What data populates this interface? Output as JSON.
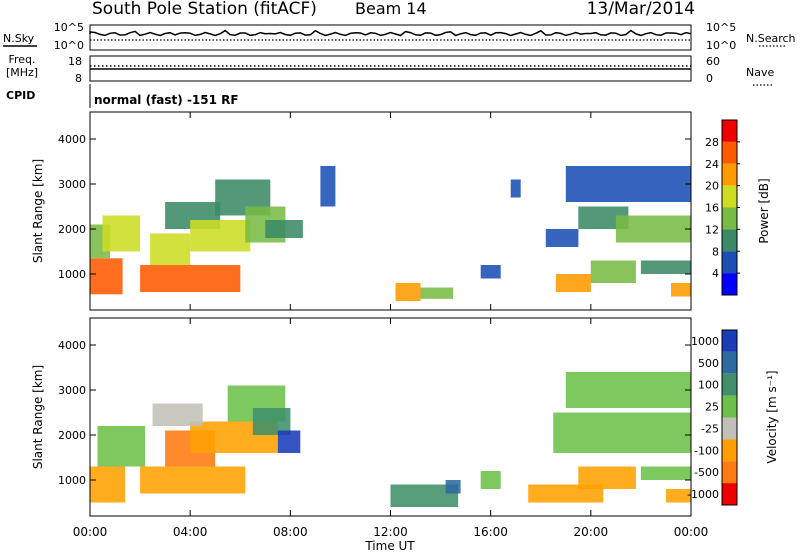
{
  "header": {
    "title": "South Pole Station (fitACF)",
    "beam": "Beam 14",
    "date": "13/Mar/2014"
  },
  "top_panels": {
    "nsky_label": "N.Sky",
    "nsearch_label": "N.Search",
    "noise_ticks": [
      "10^5",
      "10^0"
    ],
    "freq_label_1": "Freq.",
    "freq_label_2": "[MHz]",
    "freq_ticks": [
      "18",
      "8"
    ],
    "nave_label": "Nave",
    "nave_ticks": [
      "60",
      "0"
    ],
    "cpid_label": "CPID",
    "cpid_text": "normal (fast) -151 RF"
  },
  "x_axis": {
    "label": "Time UT",
    "ticks": [
      "00:00",
      "04:00",
      "08:00",
      "12:00",
      "16:00",
      "20:00",
      "00:00"
    ]
  },
  "colors": {
    "power": [
      "#0000ff",
      "#1b4fb4",
      "#3a8a66",
      "#77bb44",
      "#ccdd22",
      "#ff9a00",
      "#ff5a00",
      "#ee0000"
    ],
    "velocity": [
      "#1a3cb8",
      "#2c6aa0",
      "#3f8f6a",
      "#6cc04a",
      "#c0c0b8",
      "#ffa000",
      "#ff7a10",
      "#ee0000"
    ]
  },
  "chart_data": [
    {
      "type": "heatmap",
      "name": "power",
      "ylabel": "Slant Range [km]",
      "yticks": [
        "1000",
        "2000",
        "3000",
        "4000"
      ],
      "ylim": [
        200,
        4600
      ],
      "xlim_hours": [
        0,
        24
      ],
      "colorbar": {
        "label": "Power [dB]",
        "ticks": [
          "4",
          "8",
          "12",
          "16",
          "20",
          "24",
          "28"
        ],
        "range": [
          0,
          32
        ]
      },
      "regions": [
        {
          "t": [
            0.0,
            1.3
          ],
          "r": [
            550,
            1350
          ],
          "value": 24
        },
        {
          "t": [
            0.0,
            0.8
          ],
          "r": [
            1350,
            2100
          ],
          "value": 12
        },
        {
          "t": [
            0.5,
            2.0
          ],
          "r": [
            1500,
            2300
          ],
          "value": 16
        },
        {
          "t": [
            2.0,
            6.0
          ],
          "r": [
            600,
            1200
          ],
          "value": 24
        },
        {
          "t": [
            2.4,
            4.0
          ],
          "r": [
            1200,
            1900
          ],
          "value": 18
        },
        {
          "t": [
            3.0,
            5.2
          ],
          "r": [
            2000,
            2600
          ],
          "value": 8
        },
        {
          "t": [
            4.0,
            6.4
          ],
          "r": [
            1500,
            2200
          ],
          "value": 16
        },
        {
          "t": [
            5.0,
            7.2
          ],
          "r": [
            2300,
            3100
          ],
          "value": 8
        },
        {
          "t": [
            6.2,
            7.8
          ],
          "r": [
            1700,
            2500
          ],
          "value": 12
        },
        {
          "t": [
            7.0,
            8.5
          ],
          "r": [
            1800,
            2200
          ],
          "value": 8
        },
        {
          "t": [
            9.2,
            9.8
          ],
          "r": [
            2500,
            3400
          ],
          "value": 4
        },
        {
          "t": [
            12.2,
            13.2
          ],
          "r": [
            400,
            800
          ],
          "value": 20
        },
        {
          "t": [
            13.2,
            14.5
          ],
          "r": [
            450,
            700
          ],
          "value": 12
        },
        {
          "t": [
            15.6,
            16.4
          ],
          "r": [
            900,
            1200
          ],
          "value": 4
        },
        {
          "t": [
            16.8,
            17.2
          ],
          "r": [
            2700,
            3100
          ],
          "value": 4
        },
        {
          "t": [
            18.2,
            19.5
          ],
          "r": [
            1600,
            2000
          ],
          "value": 4
        },
        {
          "t": [
            18.6,
            20.0
          ],
          "r": [
            600,
            1000
          ],
          "value": 20
        },
        {
          "t": [
            19.5,
            21.5
          ],
          "r": [
            2000,
            2500
          ],
          "value": 8
        },
        {
          "t": [
            20.0,
            21.8
          ],
          "r": [
            800,
            1300
          ],
          "value": 12
        },
        {
          "t": [
            21.0,
            24.0
          ],
          "r": [
            1700,
            2300
          ],
          "value": 12
        },
        {
          "t": [
            22.0,
            24.0
          ],
          "r": [
            1000,
            1300
          ],
          "value": 8
        },
        {
          "t": [
            23.2,
            24.0
          ],
          "r": [
            500,
            800
          ],
          "value": 20
        },
        {
          "t": [
            19.0,
            24.0
          ],
          "r": [
            2600,
            3400
          ],
          "value": 4
        }
      ]
    },
    {
      "type": "heatmap",
      "name": "velocity",
      "ylabel": "Slant Range [km]",
      "yticks": [
        "1000",
        "2000",
        "3000",
        "4000"
      ],
      "ylim": [
        200,
        4600
      ],
      "xlim_hours": [
        0,
        24
      ],
      "colorbar": {
        "label": "Velocity [m s⁻¹]",
        "ticks": [
          "1000",
          "500",
          "100",
          "25",
          "-25",
          "-100",
          "-500",
          "-1000"
        ]
      },
      "regions": [
        {
          "t": [
            0.0,
            1.4
          ],
          "r": [
            500,
            1300
          ],
          "value": -100
        },
        {
          "t": [
            0.3,
            2.2
          ],
          "r": [
            1300,
            2200
          ],
          "value": 25
        },
        {
          "t": [
            2.0,
            6.2
          ],
          "r": [
            700,
            1300
          ],
          "value": -100
        },
        {
          "t": [
            3.0,
            5.0
          ],
          "r": [
            1300,
            2100
          ],
          "value": -500
        },
        {
          "t": [
            4.0,
            7.5
          ],
          "r": [
            1600,
            2300
          ],
          "value": -100
        },
        {
          "t": [
            5.5,
            7.8
          ],
          "r": [
            2300,
            3100
          ],
          "value": 25
        },
        {
          "t": [
            6.5,
            8.0
          ],
          "r": [
            2000,
            2600
          ],
          "value": 100
        },
        {
          "t": [
            7.5,
            8.4
          ],
          "r": [
            1600,
            2100
          ],
          "value": 1000
        },
        {
          "t": [
            2.5,
            4.5
          ],
          "r": [
            2200,
            2700
          ],
          "value": -25
        },
        {
          "t": [
            12.0,
            14.7
          ],
          "r": [
            400,
            900
          ],
          "value": 100
        },
        {
          "t": [
            14.2,
            14.8
          ],
          "r": [
            700,
            1000
          ],
          "value": 500
        },
        {
          "t": [
            15.6,
            16.4
          ],
          "r": [
            800,
            1200
          ],
          "value": 25
        },
        {
          "t": [
            17.5,
            20.5
          ],
          "r": [
            500,
            900
          ],
          "value": -100
        },
        {
          "t": [
            19.5,
            21.8
          ],
          "r": [
            800,
            1300
          ],
          "value": -100
        },
        {
          "t": [
            18.5,
            24.0
          ],
          "r": [
            1600,
            2500
          ],
          "value": 25
        },
        {
          "t": [
            22.0,
            24.0
          ],
          "r": [
            1000,
            1300
          ],
          "value": 25
        },
        {
          "t": [
            23.0,
            24.0
          ],
          "r": [
            500,
            800
          ],
          "value": -100
        },
        {
          "t": [
            19.0,
            24.0
          ],
          "r": [
            2600,
            3400
          ],
          "value": 25
        }
      ]
    }
  ]
}
